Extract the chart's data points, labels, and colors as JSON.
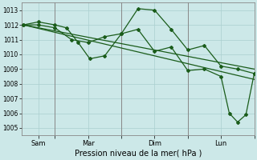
{
  "title": "Pression niveau de la mer( hPa )",
  "bg_color": "#cce8e8",
  "grid_color": "#aacfcf",
  "line_color": "#1a5c1a",
  "ylim": [
    1004.5,
    1013.5
  ],
  "yticks": [
    1005,
    1006,
    1007,
    1008,
    1009,
    1010,
    1011,
    1012,
    1013
  ],
  "xlim": [
    0,
    7.0
  ],
  "x_vlines": [
    1,
    3,
    5,
    7
  ],
  "xtick_positions": [
    0.5,
    2.0,
    4.0,
    6.0
  ],
  "xtick_labels": [
    "Sam",
    "Mar",
    "Dim",
    "Lun"
  ],
  "s1x": [
    0.05,
    0.5,
    1.0,
    1.35,
    1.7,
    2.05,
    2.5,
    3.0,
    3.5,
    4.0,
    4.5,
    5.0,
    5.5,
    6.0,
    6.5,
    7.0
  ],
  "s1y": [
    1012.0,
    1012.2,
    1012.0,
    1011.8,
    1010.8,
    1009.7,
    1009.9,
    1011.4,
    1013.1,
    1013.0,
    1011.7,
    1010.3,
    1010.6,
    1009.2,
    1009.0,
    1008.7
  ],
  "s2x": [
    0.05,
    0.5,
    1.0,
    1.5,
    2.0,
    2.5,
    3.0,
    3.5,
    4.0,
    4.5,
    5.0,
    5.5,
    6.0,
    6.25,
    6.5,
    6.75,
    7.0
  ],
  "s2y": [
    1012.0,
    1012.0,
    1011.8,
    1011.0,
    1010.8,
    1011.2,
    1011.4,
    1011.7,
    1010.2,
    1010.5,
    1008.9,
    1009.0,
    1008.5,
    1006.0,
    1005.4,
    1005.9,
    1008.7
  ],
  "trend1_x": [
    0.05,
    7.0
  ],
  "trend1_y": [
    1012.0,
    1009.0
  ],
  "trend2_x": [
    0.05,
    7.0
  ],
  "trend2_y": [
    1012.0,
    1008.3
  ]
}
